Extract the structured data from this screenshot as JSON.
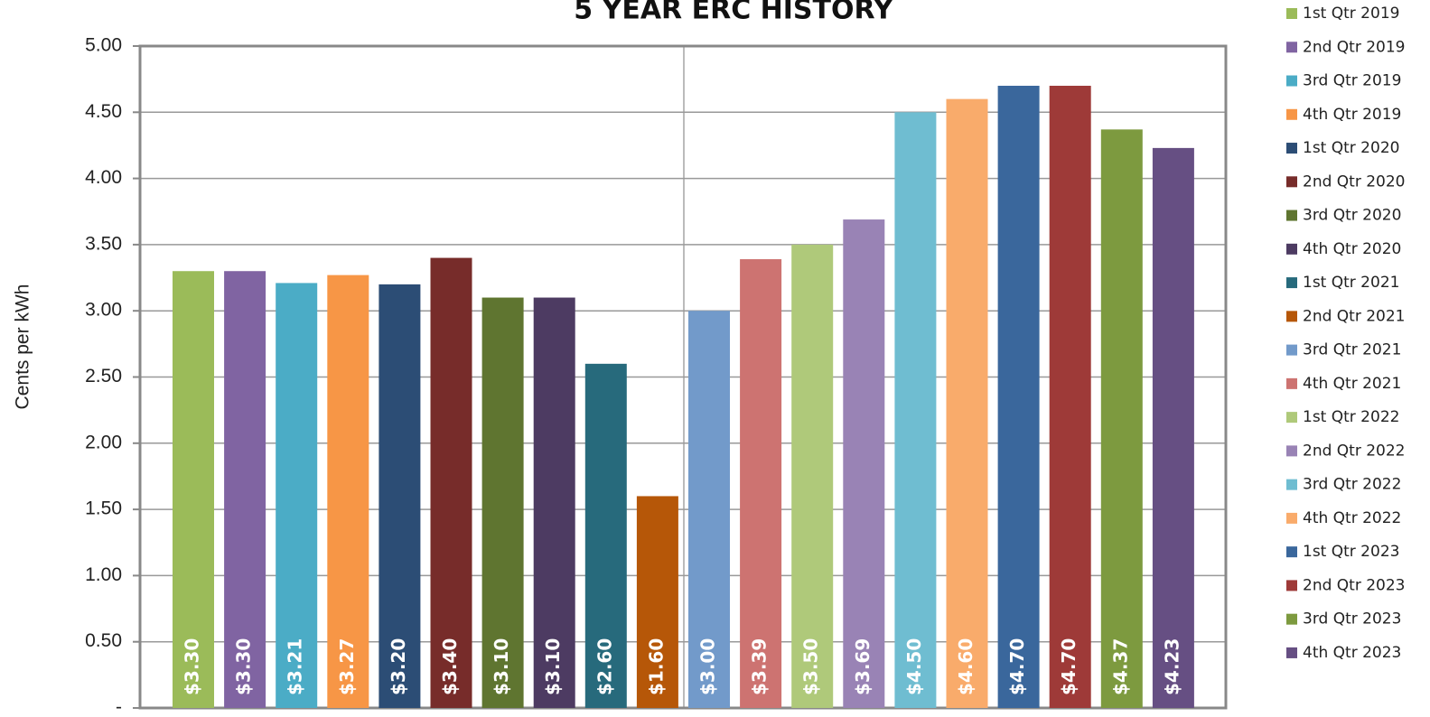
{
  "chart_data": {
    "type": "bar",
    "title": "5 YEAR ERC HISTORY",
    "y_label": "Cents per kWh",
    "ylim": [
      0,
      5
    ],
    "grid": true,
    "legend": "right",
    "yticks": [
      {
        "value": 0,
        "label": "-"
      },
      {
        "value": 0.5,
        "label": "0.50"
      },
      {
        "value": 1,
        "label": "1.00"
      },
      {
        "value": 1.5,
        "label": "1.50"
      },
      {
        "value": 2,
        "label": "2.00"
      },
      {
        "value": 2.5,
        "label": "2.50"
      },
      {
        "value": 3,
        "label": "3.00"
      },
      {
        "value": 3.5,
        "label": "3.50"
      },
      {
        "value": 4,
        "label": "4.00"
      },
      {
        "value": 4.5,
        "label": "4.50"
      },
      {
        "value": 5,
        "label": "5.00"
      }
    ],
    "series": [
      {
        "name": "1st Qtr 2019",
        "color": "#9bbb59",
        "values": [
          3.3
        ],
        "value_labels": [
          "$3.30"
        ]
      },
      {
        "name": "2nd Qtr 2019",
        "color": "#8064a2",
        "values": [
          3.3
        ],
        "value_labels": [
          "$3.30"
        ]
      },
      {
        "name": "3rd Qtr 2019",
        "color": "#4bacc6",
        "values": [
          3.21
        ],
        "value_labels": [
          "$3.21"
        ]
      },
      {
        "name": "4th Qtr 2019",
        "color": "#f79646",
        "values": [
          3.27
        ],
        "value_labels": [
          "$3.27"
        ]
      },
      {
        "name": "1st Qtr 2020",
        "color": "#2c4d75",
        "values": [
          3.2
        ],
        "value_labels": [
          "$3.20"
        ]
      },
      {
        "name": "2nd Qtr 2020",
        "color": "#772c2a",
        "values": [
          3.4
        ],
        "value_labels": [
          "$3.40"
        ]
      },
      {
        "name": "3rd Qtr 2020",
        "color": "#5f7530",
        "values": [
          3.1
        ],
        "value_labels": [
          "$3.10"
        ]
      },
      {
        "name": "4th Qtr 2020",
        "color": "#4d3b62",
        "values": [
          3.1
        ],
        "value_labels": [
          "$3.10"
        ]
      },
      {
        "name": "1st Qtr 2021",
        "color": "#276a7c",
        "values": [
          2.6
        ],
        "value_labels": [
          "$2.60"
        ]
      },
      {
        "name": "2nd Qtr 2021",
        "color": "#b65708",
        "values": [
          1.6
        ],
        "value_labels": [
          "$1.60"
        ]
      },
      {
        "name": "3rd Qtr 2021",
        "color": "#729aca",
        "values": [
          3.0
        ],
        "value_labels": [
          "$3.00"
        ]
      },
      {
        "name": "4th Qtr 2021",
        "color": "#cd7371",
        "values": [
          3.39
        ],
        "value_labels": [
          "$3.39"
        ]
      },
      {
        "name": "1st Qtr 2022",
        "color": "#afc97a",
        "values": [
          3.5
        ],
        "value_labels": [
          "$3.50"
        ]
      },
      {
        "name": "2nd Qtr 2022",
        "color": "#9983b5",
        "values": [
          3.69
        ],
        "value_labels": [
          "$3.69"
        ]
      },
      {
        "name": "3rd Qtr 2022",
        "color": "#6fbdd1",
        "values": [
          4.5
        ],
        "value_labels": [
          "$4.50"
        ]
      },
      {
        "name": "4th Qtr 2022",
        "color": "#f9ab6b",
        "values": [
          4.6
        ],
        "value_labels": [
          "$4.60"
        ]
      },
      {
        "name": "1st Qtr 2023",
        "color": "#3a679c",
        "values": [
          4.7
        ],
        "value_labels": [
          "$4.70"
        ]
      },
      {
        "name": "2nd Qtr 2023",
        "color": "#9e3a38",
        "values": [
          4.7
        ],
        "value_labels": [
          "$4.70"
        ]
      },
      {
        "name": "3rd Qtr 2023",
        "color": "#7d9a3f",
        "values": [
          4.37
        ],
        "value_labels": [
          "$4.37"
        ]
      },
      {
        "name": "4th Qtr 2023",
        "color": "#664f83",
        "values": [
          4.23
        ],
        "value_labels": [
          "$4.23"
        ]
      }
    ]
  }
}
